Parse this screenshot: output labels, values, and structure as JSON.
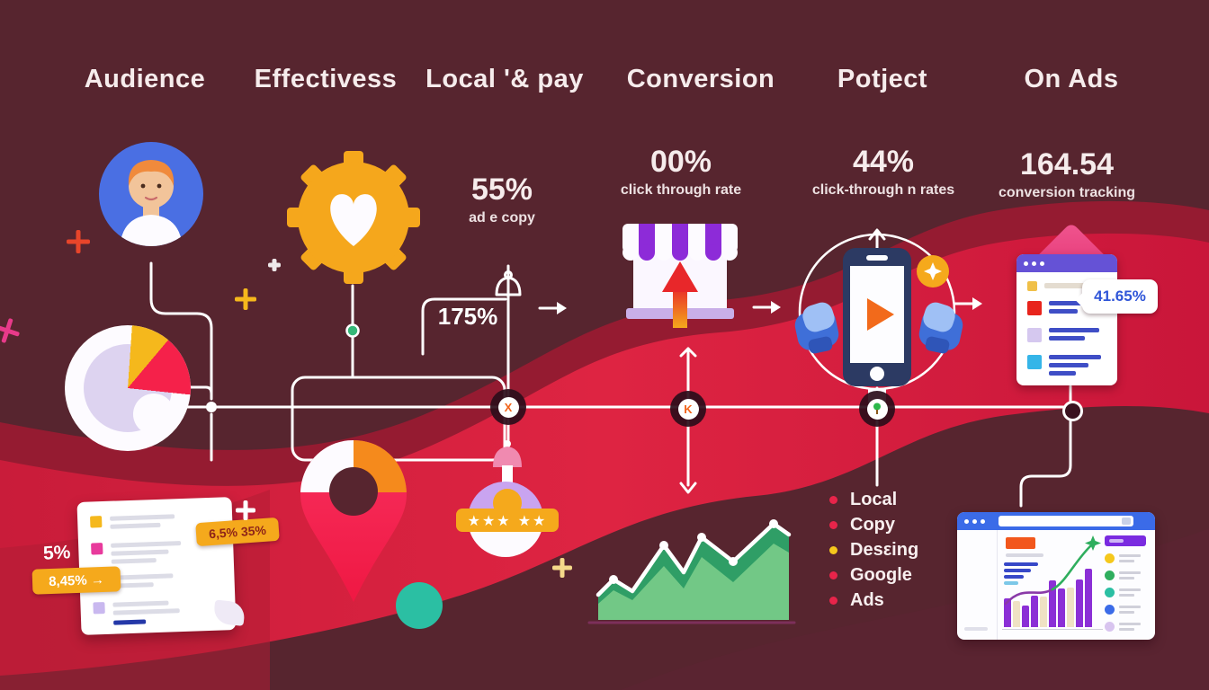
{
  "colors": {
    "background": "#57252f",
    "ribbon_bright": "#d62340",
    "ribbon_dark": "#a01a31",
    "accent_amber": "#f5a91c",
    "accent_red": "#f5214a",
    "accent_blue": "#4a6fe3",
    "accent_purple": "#6552d6",
    "accent_teal": "#2bbfa3",
    "accent_green": "#2f9e66",
    "text": "#f6ecec"
  },
  "header": {
    "columns": [
      "Audience",
      "Effectivess",
      "Local '& pay",
      "Conversion",
      "Potject",
      "On Ads"
    ]
  },
  "stats": [
    {
      "id": "effectiveness",
      "value": "55%",
      "label": "ad e copy"
    },
    {
      "id": "conversion",
      "value": "00%",
      "label": "click through rate"
    },
    {
      "id": "potject",
      "value": "44%",
      "label": "click-through n rates"
    },
    {
      "id": "on_ads",
      "value": "164.54",
      "label": "conversion tracking"
    }
  ],
  "callouts": {
    "path_percent": "175%",
    "browser_badge": "41.65%",
    "doc_note": "5%",
    "doc_tag_left": "8,45%  →",
    "doc_tag_top": "6,5% 35%"
  },
  "rating_stars": "★★★ ★★",
  "connector_nodes": [
    {
      "icon": "hourglass-icon",
      "glyph": "X"
    },
    {
      "icon": "k-icon",
      "glyph": "K"
    },
    {
      "icon": "pin-icon",
      "glyph": ""
    }
  ],
  "legend": {
    "items": [
      {
        "label": "Local",
        "color": "#e8244a"
      },
      {
        "label": "Copy",
        "color": "#e8244a"
      },
      {
        "label": "Desεing",
        "color": "#f5c81c"
      },
      {
        "label": "Google",
        "color": "#e8244a"
      },
      {
        "label": "Ads",
        "color": "#e8244a"
      }
    ]
  },
  "charts": {
    "area": {
      "type": "area",
      "line_color": "#ffffff",
      "back_fill": "#2f9e66",
      "front_fill": "#72c886",
      "baseline_color": "#7c2f5a",
      "baseline_y": 135,
      "x_range": [
        17,
        229
      ],
      "back_points": [
        [
          17,
          107
        ],
        [
          34,
          90
        ],
        [
          55,
          103
        ],
        [
          90,
          52
        ],
        [
          112,
          82
        ],
        [
          132,
          43
        ],
        [
          167,
          70
        ],
        [
          212,
          28
        ],
        [
          229,
          40
        ]
      ],
      "front_points": [
        [
          17,
          117
        ],
        [
          34,
          102
        ],
        [
          55,
          113
        ],
        [
          90,
          75
        ],
        [
          112,
          100
        ],
        [
          132,
          65
        ],
        [
          167,
          93
        ],
        [
          212,
          50
        ],
        [
          229,
          60
        ]
      ],
      "dot_indices": [
        1,
        3,
        5,
        6,
        7
      ]
    },
    "bars": {
      "type": "bar",
      "values": [
        32,
        29,
        24,
        35,
        34,
        52,
        43,
        44,
        53,
        65
      ],
      "colors": [
        "#8b2fd6",
        "#efe2c4",
        "#8b2fd6",
        "#8b2fd6",
        "#efe2c4",
        "#8b2fd6",
        "#8b2fd6",
        "#efe2c4",
        "#8b2fd6",
        "#8b2fd6"
      ]
    }
  },
  "bottom_browser": {
    "panel_dots": [
      "#f5c81c",
      "#2fae5e",
      "#2bbfa3",
      "#3b6be8",
      "#d8c4ef"
    ]
  }
}
